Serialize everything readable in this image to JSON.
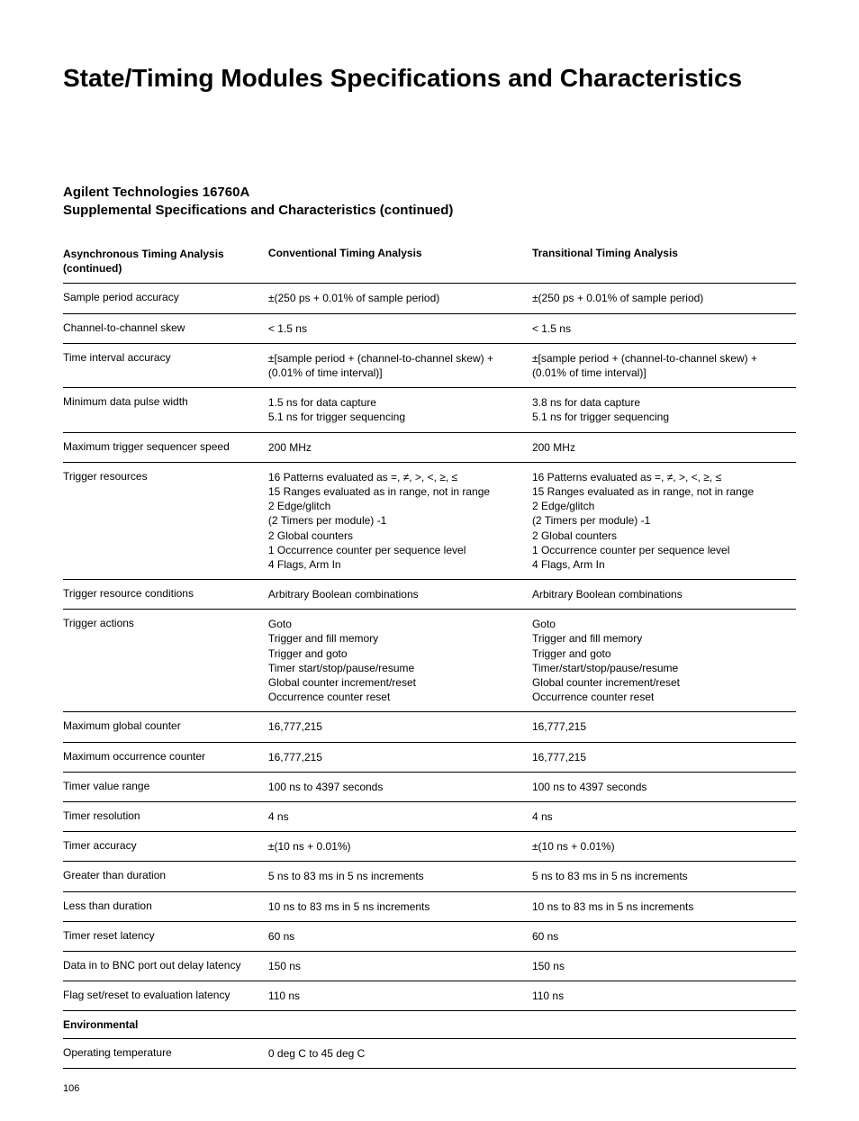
{
  "title": "State/Timing Modules Specifications and Characteristics",
  "subtitle_line1": "Agilent Technologies 16760A",
  "subtitle_line2": "Supplemental Specifications and Characteristics (continued)",
  "columns": {
    "c1": "Asynchronous Timing Analysis\n(continued)",
    "c2": "Conventional Timing Analysis",
    "c3": "Transitional Timing Analysis"
  },
  "rows": [
    {
      "label": "Sample period accuracy",
      "v1": "±(250 ps + 0.01% of sample period)",
      "v2": "±(250 ps + 0.01% of sample period)"
    },
    {
      "label": "Channel-to-channel skew",
      "v1": "< 1.5 ns",
      "v2": "< 1.5 ns"
    },
    {
      "label": "Time interval accuracy",
      "v1": "±[sample period + (channel-to-channel skew) + (0.01% of time interval)]",
      "v2": "±[sample period + (channel-to-channel skew) + (0.01% of time interval)]"
    },
    {
      "label": "Minimum data pulse width",
      "v1": "1.5 ns for data capture\n5.1 ns for trigger sequencing",
      "v2": "3.8 ns for data capture\n5.1 ns for trigger sequencing"
    },
    {
      "label": "Maximum trigger sequencer speed",
      "v1": "200 MHz",
      "v2": "200 MHz"
    },
    {
      "label": "Trigger resources",
      "v1": "16 Patterns evaluated as =, ≠, >, <, ≥, ≤\n15 Ranges evaluated as in range, not in range\n2 Edge/glitch\n(2 Timers per module) -1\n2 Global counters\n1 Occurrence counter per sequence level\n4 Flags, Arm In",
      "v2": "16 Patterns evaluated as =, ≠, >, <, ≥, ≤\n15 Ranges evaluated as in range, not in range\n2 Edge/glitch\n(2 Timers per module) -1\n2 Global counters\n1 Occurrence counter per sequence level\n4 Flags, Arm In"
    },
    {
      "label": "Trigger resource conditions",
      "v1": "Arbitrary Boolean combinations",
      "v2": "Arbitrary Boolean combinations"
    },
    {
      "label": "Trigger actions",
      "v1": "Goto\nTrigger and fill memory\nTrigger and goto\nTimer start/stop/pause/resume\nGlobal counter increment/reset\nOccurrence counter reset",
      "v2": "Goto\nTrigger and fill memory\nTrigger and goto\nTimer/start/stop/pause/resume\nGlobal counter increment/reset\nOccurrence counter reset"
    },
    {
      "label": "Maximum global counter",
      "v1": "16,777,215",
      "v2": "16,777,215"
    },
    {
      "label": "Maximum occurrence counter",
      "v1": "16,777,215",
      "v2": "16,777,215"
    },
    {
      "label": "Timer value range",
      "v1": "100 ns to 4397 seconds",
      "v2": "100 ns to 4397 seconds"
    },
    {
      "label": "Timer resolution",
      "v1": "4 ns",
      "v2": "4 ns"
    },
    {
      "label": "Timer accuracy",
      "v1": "±(10 ns + 0.01%)",
      "v2": "±(10 ns + 0.01%)"
    },
    {
      "label": "Greater than duration",
      "v1": "5 ns to 83 ms in 5 ns increments",
      "v2": "5 ns to 83 ms in 5 ns increments"
    },
    {
      "label": "Less than duration",
      "v1": "10 ns to 83 ms in 5 ns increments",
      "v2": "10 ns to 83 ms in 5 ns increments"
    },
    {
      "label": "Timer reset latency",
      "v1": "60 ns",
      "v2": "60 ns"
    },
    {
      "label": "Data in to BNC port out delay latency",
      "v1": "150 ns",
      "v2": "150 ns"
    },
    {
      "label": "Flag set/reset to evaluation latency",
      "v1": "110 ns",
      "v2": "110 ns"
    }
  ],
  "section2": {
    "heading": "Environmental"
  },
  "rows2": [
    {
      "label": "Operating temperature",
      "v1": "0 deg C to 45 deg C",
      "v2": ""
    }
  ],
  "page_number": "106"
}
